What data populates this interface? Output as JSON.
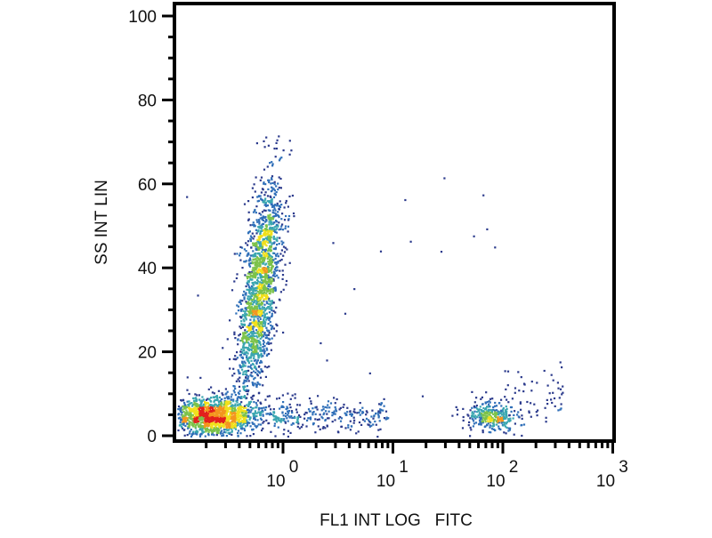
{
  "chart_data": {
    "type": "scatter",
    "subtype": "density-dot-plot",
    "xlabel": "FL1 INT LOG   FITC",
    "ylabel": "SS INT LIN",
    "x_scale": "log",
    "xlim": [
      0.1,
      1000
    ],
    "ylim": [
      0,
      100
    ],
    "x_ticks": [
      {
        "base": "10",
        "exp": "0",
        "value": 1
      },
      {
        "base": "10",
        "exp": "1",
        "value": 10
      },
      {
        "base": "10",
        "exp": "2",
        "value": 100
      },
      {
        "base": "10",
        "exp": "3",
        "value": 1000
      }
    ],
    "y_ticks": [
      "0",
      "20",
      "40",
      "60",
      "80",
      "100"
    ],
    "grid": false,
    "color_scale": [
      "#2b3a8c",
      "#2f6fb8",
      "#3aa6b0",
      "#7cc24a",
      "#f1e01c",
      "#f3961e",
      "#e2201c"
    ],
    "populations": [
      {
        "name_hint": "low cluster",
        "x_center": 0.23,
        "x_log_sd": 0.22,
        "y_center": 5,
        "y_sd": 2.3,
        "count": 1500
      },
      {
        "name_hint": "side-scatter streak",
        "x_center": 0.6,
        "x_log_sd": 0.08,
        "y_center": 35,
        "y_sd": 13,
        "y_range": [
          8,
          75
        ],
        "count": 1800
      },
      {
        "name_hint": "negative tail",
        "x_range": [
          0.8,
          9
        ],
        "y_center": 5,
        "y_sd": 2,
        "count": 260
      },
      {
        "name_hint": "FITC positive cluster",
        "x_center": 75,
        "x_log_sd": 0.11,
        "y_center": 5,
        "y_sd": 2,
        "count": 320
      },
      {
        "name_hint": "positive tail",
        "x_range": [
          100,
          350
        ],
        "y_center": 9,
        "y_sd": 4,
        "count": 60
      }
    ]
  }
}
